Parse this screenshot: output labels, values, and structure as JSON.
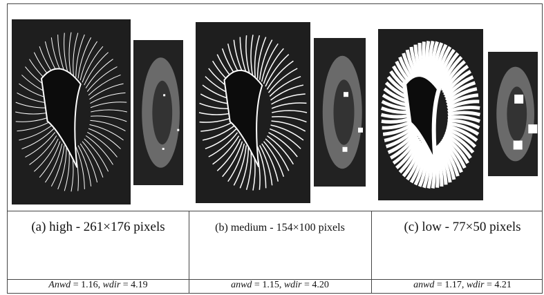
{
  "panels": [
    {
      "caption": "(a) high - 261×176 pixels",
      "metric": [
        {
          "text": "Anwd",
          "italic": true
        },
        {
          "text": " = 1.16, ",
          "italic": false
        },
        {
          "text": "wdir",
          "italic": true
        },
        {
          "text": " = 4.19",
          "italic": false
        }
      ]
    },
    {
      "caption": "(b) medium - 154×100 pixels",
      "metric": [
        {
          "text": "anwd",
          "italic": true
        },
        {
          "text": " = 1.15, ",
          "italic": false
        },
        {
          "text": "wdir",
          "italic": true
        },
        {
          "text": " = 4.20",
          "italic": false
        }
      ]
    },
    {
      "caption": "(c) low - 77×50 pixels",
      "metric": [
        {
          "text": "anwd",
          "italic": true
        },
        {
          "text": " = 1.17, ",
          "italic": false
        },
        {
          "text": "wdir",
          "italic": true
        },
        {
          "text": " = 4.21",
          "italic": false
        }
      ]
    }
  ]
}
